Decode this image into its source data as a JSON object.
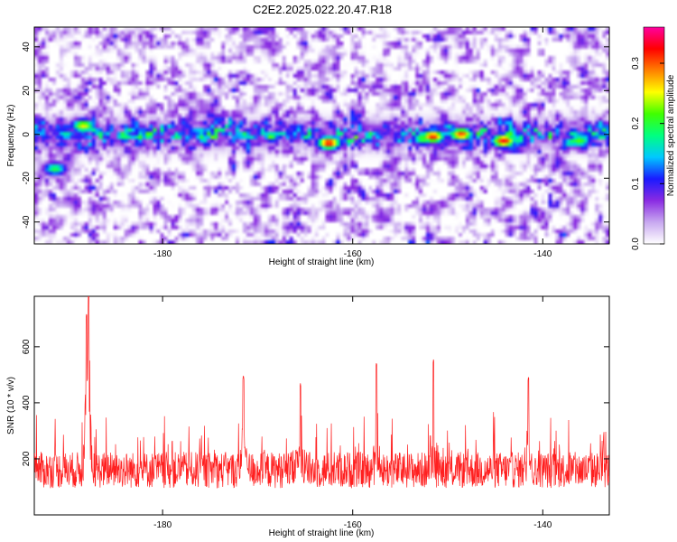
{
  "title": "C2E2.2025.022.20.47.R18",
  "colors": {
    "snr_line": "#ff2020",
    "background": "#ffffff",
    "colorbar_stops": [
      "#ffffff",
      "#c8a8f0",
      "#8a2be2",
      "#1a1aff",
      "#00c8ff",
      "#00ff80",
      "#40ff00",
      "#ffff00",
      "#ff8000",
      "#ff0000",
      "#ff00a0"
    ]
  },
  "chart_data": [
    {
      "type": "heatmap",
      "title": "C2E2.2025.022.20.47.R18",
      "xlabel": "Height of straight line (km)",
      "ylabel": "Frequency (Hz)",
      "xlim": [
        -193.5,
        -133
      ],
      "ylim": [
        -50,
        49
      ],
      "xticks": [
        -180,
        -160,
        -140
      ],
      "xtick_labels": [
        "-180",
        "-160",
        "-140"
      ],
      "yticks": [
        -40,
        -20,
        0,
        20,
        40
      ],
      "ytick_labels": [
        "-40",
        "-20",
        "0",
        "20",
        "40"
      ],
      "colorbar": {
        "label": "Normalized spectral amplitude",
        "range": [
          0.0,
          0.36
        ],
        "ticks": [
          0.0,
          0.1,
          0.2,
          0.3
        ],
        "tick_labels": [
          "0.0",
          "0.1",
          "0.2",
          "0.3"
        ]
      },
      "band": {
        "center_frequency_hz": 0,
        "half_width_hz": 6,
        "hotspots": [
          {
            "x": -188.5,
            "y": 4,
            "amp": 0.26
          },
          {
            "x": -162.5,
            "y": -4,
            "amp": 0.33
          },
          {
            "x": -151.5,
            "y": -1,
            "amp": 0.32
          },
          {
            "x": -148.5,
            "y": 0,
            "amp": 0.31
          },
          {
            "x": -144,
            "y": -3,
            "amp": 0.33
          },
          {
            "x": -136,
            "y": -3,
            "amp": 0.22
          },
          {
            "x": -191.5,
            "y": -16,
            "amp": 0.2
          },
          {
            "x": -152.5,
            "y": -2,
            "amp": 0.22
          }
        ]
      }
    },
    {
      "type": "line",
      "xlabel": "Height of straight line (km)",
      "ylabel": "SNR (10 * v/v)",
      "xlim": [
        -193.5,
        -133
      ],
      "ylim": [
        0,
        780
      ],
      "xticks": [
        -180,
        -160,
        -140
      ],
      "xtick_labels": [
        "-180",
        "-160",
        "-140"
      ],
      "yticks": [
        200,
        400,
        600
      ],
      "ytick_labels": [
        "200",
        "400",
        "600"
      ],
      "baseline_mean": 160,
      "peaks": [
        {
          "x": -187.8,
          "y": 770
        },
        {
          "x": -188.0,
          "y": 720
        },
        {
          "x": -151.5,
          "y": 555
        },
        {
          "x": -157.5,
          "y": 545
        },
        {
          "x": -171.5,
          "y": 500
        },
        {
          "x": -141.5,
          "y": 495
        },
        {
          "x": -165.5,
          "y": 470
        }
      ]
    }
  ]
}
